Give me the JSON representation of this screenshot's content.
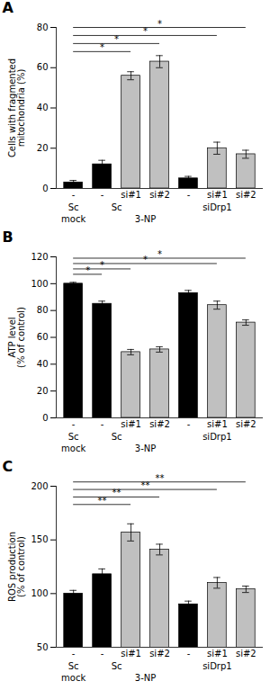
{
  "chart_data": [
    {
      "type": "bar",
      "title": "A",
      "ylabel": "Cells with fragmented\nmitochondria (%)",
      "categories": [
        "-",
        "-",
        "si#1",
        "si#2",
        "-",
        "si#1",
        "si#2"
      ],
      "values": [
        3,
        12,
        56,
        63,
        5,
        20,
        17
      ],
      "errors": [
        1,
        2,
        2,
        3,
        1,
        3,
        2
      ],
      "colors": [
        "#000000",
        "#000000",
        "#c0c0c0",
        "#c0c0c0",
        "#000000",
        "#c0c0c0",
        "#c0c0c0"
      ],
      "ylim": [
        0,
        80
      ],
      "yticks": [
        0,
        20,
        40,
        60,
        80
      ],
      "sig_brackets": [
        {
          "x1": 1,
          "x2": 3,
          "y": 68,
          "label": "*"
        },
        {
          "x1": 1,
          "x2": 4,
          "y": 72,
          "label": "*"
        },
        {
          "x1": 1,
          "x2": 6,
          "y": 76,
          "label": "*"
        },
        {
          "x1": 1,
          "x2": 7,
          "y": 80,
          "label": "*"
        }
      ],
      "group_labels": [
        {
          "text": "Sc",
          "x": 1.0
        },
        {
          "text": "Sc",
          "x": 2.5
        },
        {
          "text": "siDrp1",
          "x": 6.0
        }
      ],
      "row_labels": [
        {
          "text": "mock",
          "x": 1.0
        },
        {
          "text": "3-NP",
          "x": 3.5
        }
      ]
    },
    {
      "type": "bar",
      "title": "B",
      "ylabel": "ATP level\n(% of control)",
      "categories": [
        "-",
        "-",
        "si#1",
        "si#2",
        "-",
        "si#1",
        "si#2"
      ],
      "values": [
        100,
        85,
        49,
        51,
        93,
        84,
        71
      ],
      "errors": [
        1,
        2,
        2,
        2,
        2,
        3,
        2
      ],
      "colors": [
        "#000000",
        "#000000",
        "#c0c0c0",
        "#c0c0c0",
        "#000000",
        "#c0c0c0",
        "#c0c0c0"
      ],
      "ylim": [
        0,
        120
      ],
      "yticks": [
        0,
        20,
        40,
        60,
        80,
        100,
        120
      ],
      "sig_brackets": [
        {
          "x1": 1,
          "x2": 2,
          "y": 107,
          "label": "*"
        },
        {
          "x1": 1,
          "x2": 3,
          "y": 111,
          "label": "*"
        },
        {
          "x1": 1,
          "x2": 6,
          "y": 115,
          "label": "*"
        },
        {
          "x1": 1,
          "x2": 7,
          "y": 119,
          "label": "*"
        }
      ],
      "group_labels": [
        {
          "text": "Sc",
          "x": 1.0
        },
        {
          "text": "Sc",
          "x": 2.5
        },
        {
          "text": "siDrp1",
          "x": 6.0
        }
      ],
      "row_labels": [
        {
          "text": "mock",
          "x": 1.0
        },
        {
          "text": "3-NP",
          "x": 3.5
        }
      ]
    },
    {
      "type": "bar",
      "title": "C",
      "ylabel": "ROS production\n(% of control)",
      "categories": [
        "-",
        "-",
        "si#1",
        "si#2",
        "-",
        "si#1",
        "si#2"
      ],
      "values": [
        100,
        118,
        157,
        141,
        90,
        110,
        104
      ],
      "errors": [
        3,
        5,
        8,
        5,
        3,
        5,
        3
      ],
      "colors": [
        "#000000",
        "#000000",
        "#c0c0c0",
        "#c0c0c0",
        "#000000",
        "#c0c0c0",
        "#c0c0c0"
      ],
      "ylim": [
        50,
        200
      ],
      "yticks": [
        50,
        100,
        150,
        200
      ],
      "sig_brackets": [
        {
          "x1": 1,
          "x2": 3,
          "y": 183,
          "label": "**"
        },
        {
          "x1": 1,
          "x2": 4,
          "y": 190,
          "label": "**"
        },
        {
          "x1": 1,
          "x2": 6,
          "y": 197,
          "label": "**"
        },
        {
          "x1": 1,
          "x2": 7,
          "y": 204,
          "label": "**"
        }
      ],
      "group_labels": [
        {
          "text": "Sc",
          "x": 1.0
        },
        {
          "text": "Sc",
          "x": 2.5
        },
        {
          "text": "siDrp1",
          "x": 6.0
        }
      ],
      "row_labels": [
        {
          "text": "mock",
          "x": 1.0
        },
        {
          "text": "3-NP",
          "x": 3.5
        }
      ]
    }
  ]
}
